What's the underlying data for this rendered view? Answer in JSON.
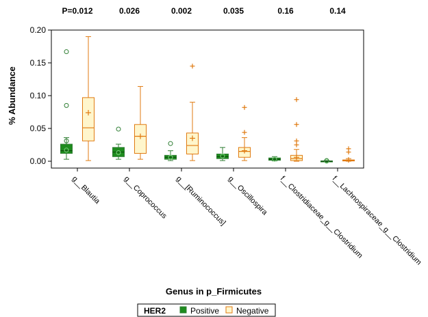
{
  "chart_data": {
    "type": "box",
    "ylabel": "% Abundance",
    "xlabel": "Genus in p_Firmicutes",
    "ylim": [
      0,
      0.2
    ],
    "yticks": [
      "0.00",
      "0.05",
      "0.10",
      "0.15",
      "0.20"
    ],
    "categories": [
      "g__Blautia",
      "g__Coprococcus",
      "g__[Ruminococcus]",
      "g__Oscillospira",
      "f__Clostridiaceae_g__Clostridium",
      "f__Lachnospiraceae_g__Clostridium"
    ],
    "pvalues": [
      "P=0.012",
      "0.026",
      "0.002",
      "0.035",
      "0.16",
      "0.14"
    ],
    "legend": {
      "title": "HER2",
      "placement": "bottom",
      "entries": [
        "Positive",
        "Negative"
      ]
    },
    "colors": {
      "positive_fill": "#1e8c1e",
      "positive_stroke": "#2e7d32",
      "negative_fill": "#fff6cc",
      "negative_stroke": "#e07a10"
    },
    "series": [
      {
        "name": "Positive",
        "boxes": [
          {
            "whisker_low": 0.003,
            "q1": 0.012,
            "median": 0.016,
            "q3": 0.026,
            "whisker_high": 0.036,
            "mean": 0.017,
            "outliers": [
              0.031,
              0.085,
              0.167
            ]
          },
          {
            "whisker_low": 0.003,
            "q1": 0.007,
            "median": 0.014,
            "q3": 0.021,
            "whisker_high": 0.026,
            "mean": 0.013,
            "outliers": [
              0.049
            ]
          },
          {
            "whisker_low": 0.001,
            "q1": 0.003,
            "median": 0.006,
            "q3": 0.009,
            "whisker_high": 0.016,
            "mean": 0.006,
            "outliers": [
              0.027
            ]
          },
          {
            "whisker_low": 0.001,
            "q1": 0.004,
            "median": 0.007,
            "q3": 0.011,
            "whisker_high": 0.021,
            "mean": 0.008,
            "outliers": []
          },
          {
            "whisker_low": 0.0005,
            "q1": 0.0015,
            "median": 0.003,
            "q3": 0.005,
            "whisker_high": 0.007,
            "mean": 0.003,
            "outliers": []
          },
          {
            "whisker_low": 0.0,
            "q1": 0.0,
            "median": 0.0,
            "q3": 0.0005,
            "whisker_high": 0.001,
            "mean": 0.0,
            "outliers": [
              0.001
            ]
          }
        ]
      },
      {
        "name": "Negative",
        "boxes": [
          {
            "whisker_low": 0.001,
            "q1": 0.031,
            "median": 0.051,
            "q3": 0.097,
            "whisker_high": 0.19,
            "mean": 0.074,
            "outliers": []
          },
          {
            "whisker_low": 0.003,
            "q1": 0.012,
            "median": 0.038,
            "q3": 0.056,
            "whisker_high": 0.114,
            "mean": 0.038,
            "outliers": []
          },
          {
            "whisker_low": 0.001,
            "q1": 0.011,
            "median": 0.024,
            "q3": 0.043,
            "whisker_high": 0.09,
            "mean": 0.035,
            "outliers": [
              0.145
            ]
          },
          {
            "whisker_low": 0.001,
            "q1": 0.006,
            "median": 0.015,
            "q3": 0.021,
            "whisker_high": 0.036,
            "mean": 0.016,
            "outliers": [
              0.044,
              0.082
            ]
          },
          {
            "whisker_low": 0.0,
            "q1": 0.001,
            "median": 0.004,
            "q3": 0.009,
            "whisker_high": 0.018,
            "mean": 0.006,
            "outliers": [
              0.025,
              0.031,
              0.056,
              0.094
            ]
          },
          {
            "whisker_low": 0.0,
            "q1": 0.0005,
            "median": 0.001,
            "q3": 0.002,
            "whisker_high": 0.004,
            "mean": 0.002,
            "outliers": [
              0.014,
              0.019
            ]
          }
        ]
      }
    ]
  }
}
